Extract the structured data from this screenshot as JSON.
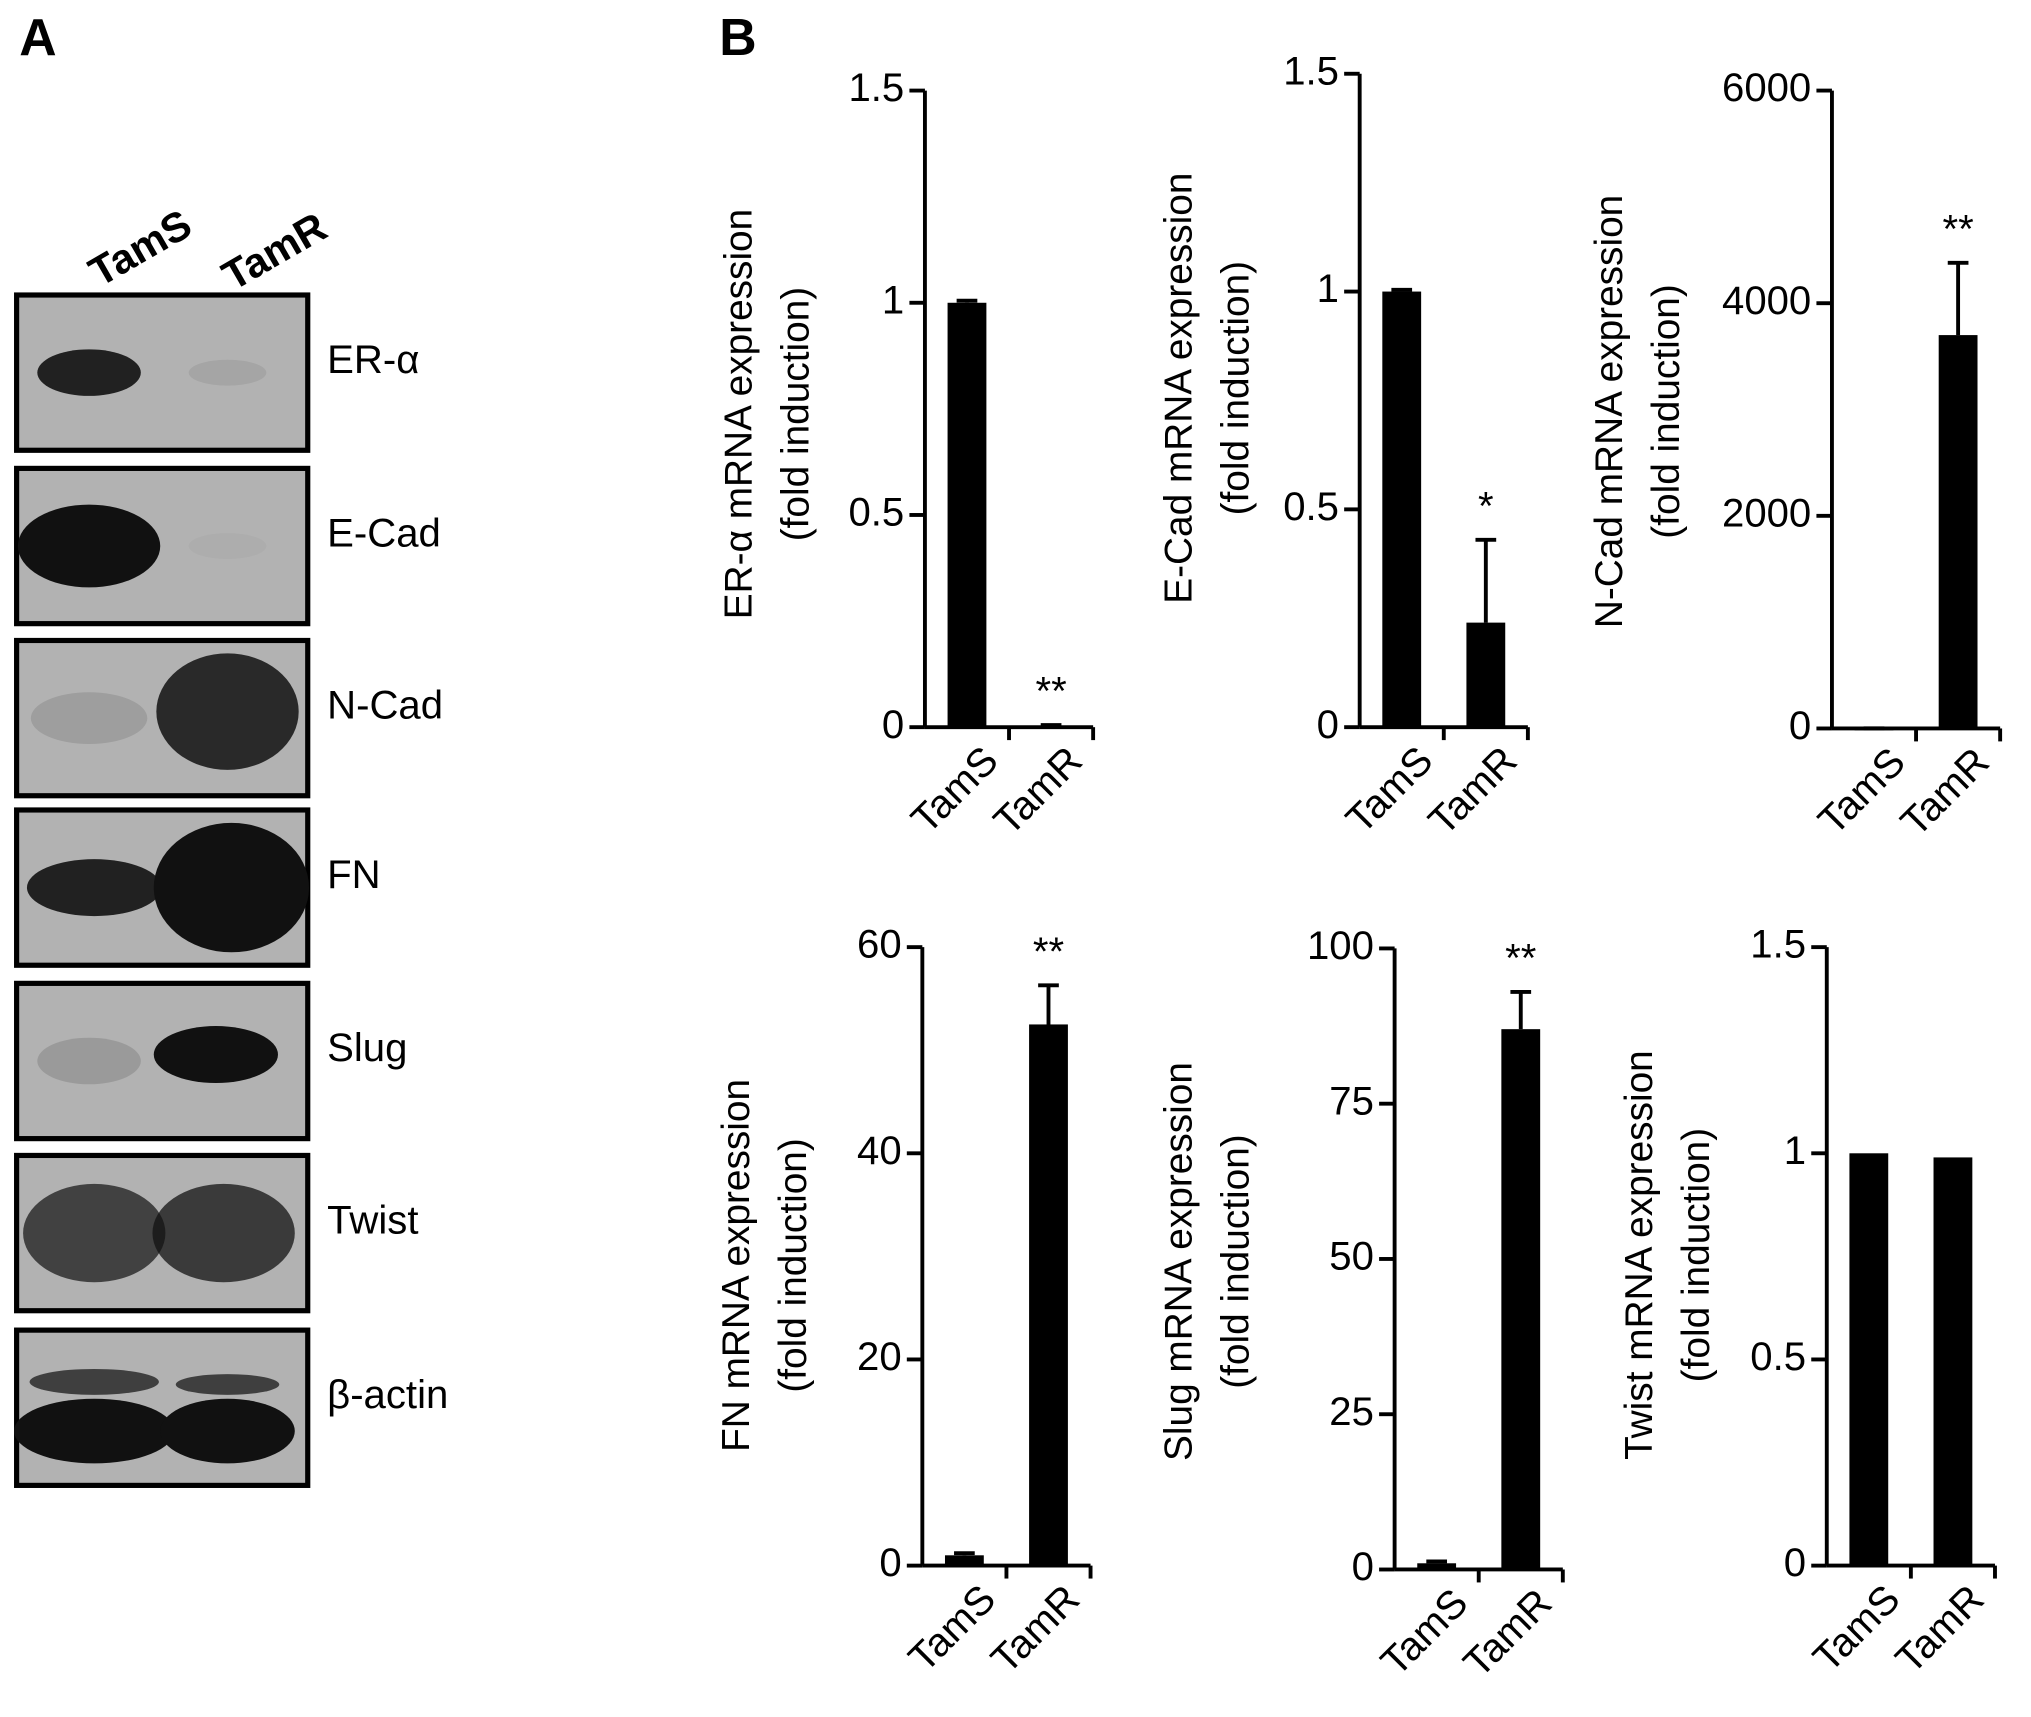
{
  "panel_a": {
    "label": "A",
    "lanes": [
      "TamS",
      "TamR"
    ],
    "proteins": [
      "ER-α",
      "E-Cad",
      "N-Cad",
      "FN",
      "Slug",
      "Twist",
      "β-actin"
    ]
  },
  "panel_b": {
    "label": "B"
  },
  "chart_data": [
    {
      "type": "bar",
      "ylabel": [
        "ER-α mRNA expression",
        "(fold induction)"
      ],
      "categories": [
        "TamS",
        "TamR"
      ],
      "values": [
        1,
        0.003
      ],
      "errors": [
        0.005,
        0.002
      ],
      "color": "#000000",
      "ylim": [
        0,
        1.5
      ],
      "yticks": [
        0,
        0.5,
        1,
        1.5
      ],
      "annotations": [
        {
          "x": "TamR",
          "text": "**"
        }
      ]
    },
    {
      "type": "bar",
      "ylabel": [
        "E-Cad mRNA expression",
        "(fold induction)"
      ],
      "categories": [
        "TamS",
        "TamR"
      ],
      "values": [
        1,
        0.24
      ],
      "errors": [
        0.004,
        0.19
      ],
      "color": "#000000",
      "ylim": [
        0,
        1.5
      ],
      "yticks": [
        0,
        0.5,
        1,
        1.5
      ],
      "annotations": [
        {
          "x": "TamR",
          "text": "*"
        }
      ]
    },
    {
      "type": "bar",
      "ylabel": [
        "N-Cad mRNA expression",
        "(fold induction)"
      ],
      "categories": [
        "TamS",
        "TamR"
      ],
      "values": [
        1,
        3700
      ],
      "errors": [
        0.2,
        680
      ],
      "color": "#000000",
      "ylim": [
        0,
        6000
      ],
      "yticks": [
        0,
        2000,
        4000,
        6000
      ],
      "annotations": [
        {
          "x": "TamR",
          "text": "**"
        }
      ]
    },
    {
      "type": "bar",
      "ylabel": [
        "FN mRNA expression",
        "(fold induction)"
      ],
      "categories": [
        "TamS",
        "TamR"
      ],
      "values": [
        1,
        52.5
      ],
      "errors": [
        0.2,
        3.8
      ],
      "color": "#000000",
      "ylim": [
        0,
        60
      ],
      "yticks": [
        0,
        20,
        40,
        60
      ],
      "annotations": [
        {
          "x": "TamR",
          "text": "**"
        }
      ]
    },
    {
      "type": "bar",
      "ylabel": [
        "Slug mRNA expression",
        "(fold induction)"
      ],
      "categories": [
        "TamS",
        "TamR"
      ],
      "values": [
        1,
        87
      ],
      "errors": [
        0.3,
        6
      ],
      "color": "#000000",
      "ylim": [
        0,
        100
      ],
      "yticks": [
        0,
        25,
        50,
        75,
        100
      ],
      "annotations": [
        {
          "x": "TamR",
          "text": "**"
        }
      ]
    },
    {
      "type": "bar",
      "ylabel": [
        "Twist mRNA expression",
        "(fold induction)"
      ],
      "categories": [
        "TamS",
        "TamR"
      ],
      "values": [
        1,
        0.99
      ],
      "color": "#000000",
      "ylim": [
        0,
        1.5
      ],
      "yticks": [
        0,
        0.5,
        1,
        1.5
      ],
      "annotations": []
    }
  ]
}
